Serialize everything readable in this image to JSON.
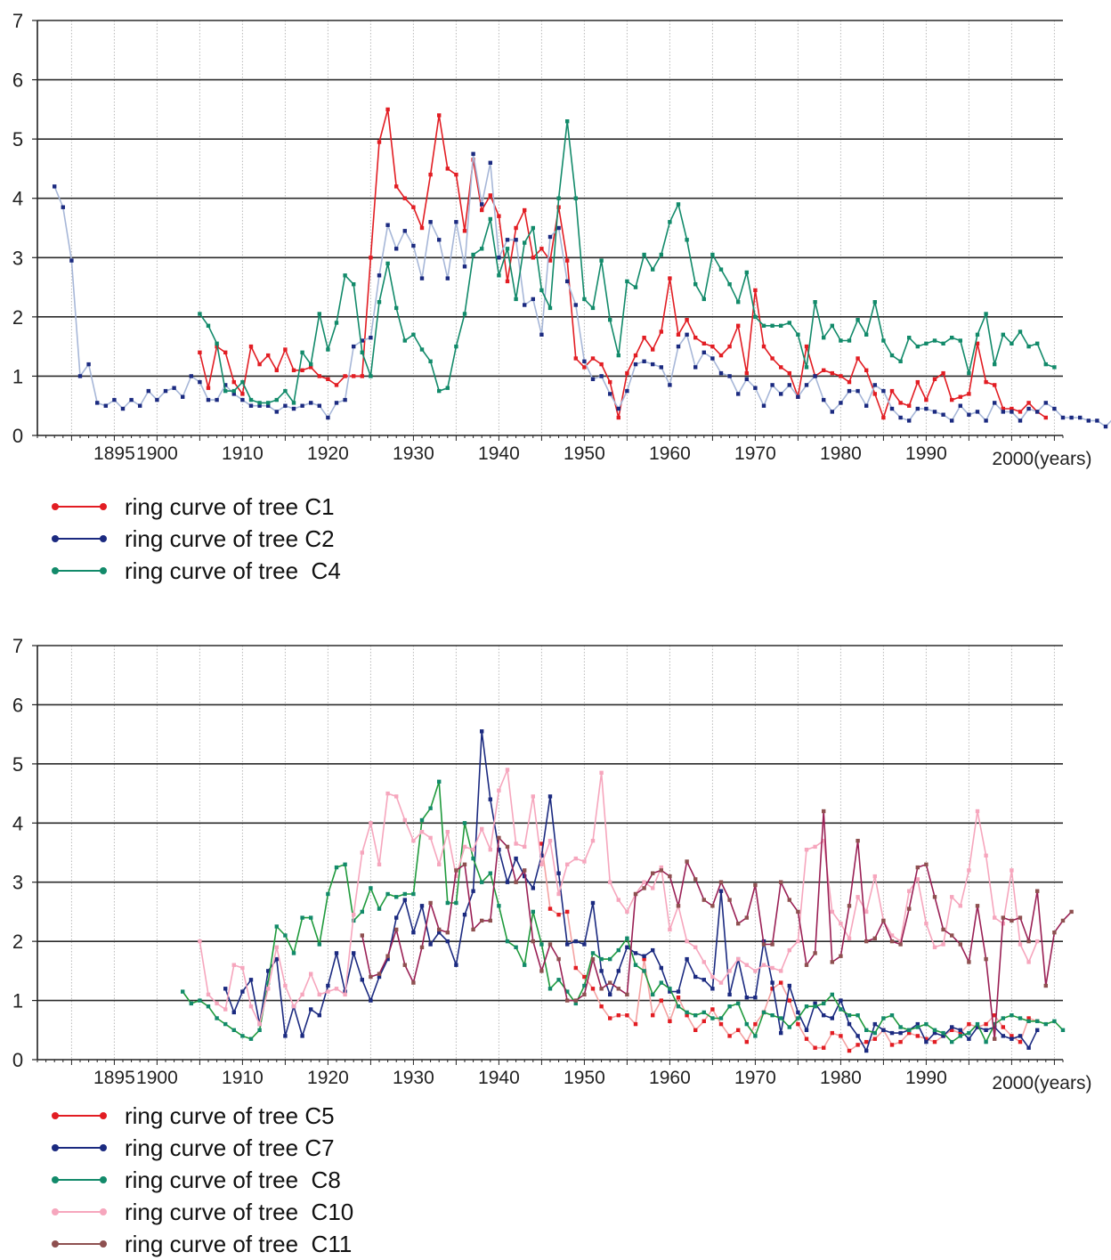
{
  "charts": [
    {
      "legend": [
        {
          "label": "ring curve of tree C1",
          "color": "#e21d23"
        },
        {
          "label": "ring curve of tree C2",
          "color": "#1b2a80"
        },
        {
          "label": "ring curve of tree  C4",
          "color": "#128a6a"
        }
      ]
    },
    {
      "legend": [
        {
          "label": "ring curve of tree C5",
          "color": "#e21d23"
        },
        {
          "label": "ring curve of tree C7",
          "color": "#1b2a80"
        },
        {
          "label": "ring curve of tree  C8",
          "color": "#128a6a"
        },
        {
          "label": "ring curve of tree  C10",
          "color": "#f6a6bd"
        },
        {
          "label": "ring curve of tree  C11",
          "color": "#8e5050"
        }
      ]
    }
  ],
  "chart_data": [
    {
      "type": "line",
      "title": "",
      "xlabel": "",
      "ylabel": "",
      "x_tick_labels": [
        "1895",
        "1900",
        "1910",
        "1920",
        "1930",
        "1940",
        "1950",
        "1960",
        "1970",
        "1980",
        "1990",
        "2000(years)"
      ],
      "x_ticks": [
        1895,
        1900,
        1910,
        1920,
        1930,
        1940,
        1950,
        1960,
        1970,
        1980,
        1990,
        2000
      ],
      "y_ticks": [
        0,
        1,
        2,
        3,
        4,
        5,
        6,
        7
      ],
      "xlim": [
        1886,
        2006
      ],
      "ylim": [
        0,
        7
      ],
      "grid": true,
      "legend_position": "bottom-left",
      "series": [
        {
          "name": "ring curve of tree C1",
          "color": "#e21d23",
          "line_color": "#e21d23",
          "x_start": 1905,
          "values": [
            1.4,
            0.8,
            1.5,
            1.4,
            0.9,
            0.7,
            1.5,
            1.2,
            1.35,
            1.1,
            1.45,
            1.1,
            1.1,
            1.15,
            1.0,
            0.95,
            0.85,
            1.0,
            1.0,
            1.0,
            3.0,
            4.95,
            5.5,
            4.2,
            4.0,
            3.85,
            3.5,
            4.4,
            5.4,
            4.5,
            4.4,
            3.45,
            4.65,
            3.8,
            4.05,
            3.7,
            2.6,
            3.5,
            3.8,
            3.0,
            3.15,
            2.95,
            3.85,
            2.95,
            1.3,
            1.15,
            1.3,
            1.2,
            0.9,
            0.3,
            1.05,
            1.35,
            1.65,
            1.45,
            1.75,
            2.65,
            1.7,
            1.95,
            1.65,
            1.55,
            1.5,
            1.35,
            1.5,
            1.85,
            1.05,
            2.45,
            1.5,
            1.3,
            1.15,
            1.05,
            0.65,
            1.5,
            1.0,
            1.1,
            1.05,
            1.0,
            0.9,
            1.3,
            1.1,
            0.7,
            0.3,
            0.75,
            0.55,
            0.5,
            0.9,
            0.6,
            0.95,
            1.05,
            0.6,
            0.65,
            0.7,
            1.55,
            0.9,
            0.85,
            0.45,
            0.45,
            0.4,
            0.55,
            0.4,
            0.3
          ]
        },
        {
          "name": "ring curve of tree C2",
          "color": "#1b2a80",
          "line_color": "#a7b7d8",
          "x_start": 1888,
          "values": [
            4.2,
            3.85,
            2.95,
            1.0,
            1.2,
            0.55,
            0.5,
            0.6,
            0.45,
            0.6,
            0.5,
            0.75,
            0.6,
            0.75,
            0.8,
            0.65,
            1.0,
            0.9,
            0.6,
            0.6,
            0.85,
            0.7,
            0.6,
            0.5,
            0.5,
            0.5,
            0.4,
            0.5,
            0.45,
            0.5,
            0.55,
            0.5,
            0.3,
            0.55,
            0.6,
            1.5,
            1.6,
            1.65,
            2.7,
            3.55,
            3.15,
            3.45,
            3.2,
            2.65,
            3.6,
            3.3,
            2.65,
            3.6,
            2.85,
            4.75,
            3.9,
            4.6,
            3.0,
            3.3,
            3.3,
            2.2,
            2.3,
            1.7,
            3.35,
            3.5,
            2.6,
            2.2,
            1.25,
            0.95,
            1.0,
            0.7,
            0.45,
            0.75,
            1.2,
            1.25,
            1.2,
            1.15,
            0.85,
            1.5,
            1.7,
            1.15,
            1.4,
            1.3,
            1.05,
            1.0,
            0.7,
            0.95,
            0.8,
            0.5,
            0.85,
            0.7,
            0.85,
            0.65,
            0.85,
            1.0,
            0.6,
            0.4,
            0.55,
            0.75,
            0.75,
            0.5,
            0.85,
            0.75,
            0.45,
            0.3,
            0.25,
            0.45,
            0.45,
            0.4,
            0.35,
            0.25,
            0.5,
            0.35,
            0.4,
            0.25,
            0.55,
            0.4,
            0.4,
            0.25,
            0.45,
            0.4,
            0.55,
            0.45,
            0.3,
            0.3,
            0.3,
            0.25,
            0.25,
            0.15,
            0.3
          ]
        },
        {
          "name": "ring curve of tree  C4",
          "color": "#128a6a",
          "line_color": "#128a6a",
          "x_start": 1905,
          "values": [
            2.05,
            1.85,
            1.55,
            0.75,
            0.75,
            0.9,
            0.6,
            0.55,
            0.55,
            0.6,
            0.75,
            0.55,
            1.4,
            1.2,
            2.05,
            1.45,
            1.9,
            2.7,
            2.55,
            1.4,
            1.0,
            2.25,
            2.9,
            2.15,
            1.6,
            1.7,
            1.45,
            1.25,
            0.75,
            0.8,
            1.5,
            2.05,
            3.05,
            3.15,
            3.65,
            2.7,
            3.15,
            2.3,
            3.25,
            3.5,
            2.45,
            2.15,
            4.0,
            5.3,
            4.0,
            2.3,
            2.15,
            2.95,
            1.95,
            1.35,
            2.6,
            2.5,
            3.05,
            2.8,
            3.05,
            3.6,
            3.9,
            3.3,
            2.55,
            2.3,
            3.05,
            2.8,
            2.55,
            2.25,
            2.75,
            2.0,
            1.85,
            1.85,
            1.85,
            1.9,
            1.7,
            1.15,
            2.25,
            1.65,
            1.85,
            1.6,
            1.6,
            1.95,
            1.7,
            2.25,
            1.6,
            1.35,
            1.25,
            1.65,
            1.5,
            1.55,
            1.6,
            1.55,
            1.65,
            1.6,
            1.05,
            1.7,
            2.05,
            1.2,
            1.7,
            1.55,
            1.75,
            1.5,
            1.55,
            1.2,
            1.15
          ]
        }
      ]
    },
    {
      "type": "line",
      "title": "",
      "xlabel": "",
      "ylabel": "",
      "x_tick_labels": [
        "1895",
        "1900",
        "1910",
        "1920",
        "1930",
        "1940",
        "1950",
        "1960",
        "1970",
        "1980",
        "1990",
        "2000(years)"
      ],
      "x_ticks": [
        1895,
        1900,
        1910,
        1920,
        1930,
        1940,
        1950,
        1960,
        1970,
        1980,
        1990,
        2000
      ],
      "y_ticks": [
        0,
        1,
        2,
        3,
        4,
        5,
        6,
        7
      ],
      "xlim": [
        1886,
        2006
      ],
      "ylim": [
        0,
        7
      ],
      "grid": true,
      "legend_position": "bottom-left",
      "series": [
        {
          "name": "ring curve of tree C5",
          "color": "#e21d23",
          "line_color": "#f4a2a2",
          "x_start": 1945,
          "values": [
            3.65,
            2.55,
            2.45,
            2.5,
            1.55,
            1.4,
            1.2,
            0.9,
            0.7,
            0.75,
            0.75,
            0.6,
            1.7,
            0.75,
            1.0,
            0.65,
            1.05,
            0.75,
            0.5,
            0.65,
            0.85,
            0.6,
            0.4,
            0.5,
            0.3,
            0.6,
            0.8,
            1.2,
            1.3,
            1.0,
            0.6,
            0.35,
            0.2,
            0.2,
            0.45,
            0.4,
            0.15,
            0.25,
            0.3,
            0.35,
            0.5,
            0.25,
            0.3,
            0.45,
            0.4,
            0.35,
            0.3,
            0.4,
            0.5,
            0.45,
            0.6,
            0.55,
            0.6,
            0.75,
            0.55,
            0.4,
            0.3,
            0.7,
            0.65
          ]
        },
        {
          "name": "ring curve of tree C7",
          "color": "#1b2a80",
          "line_color": "#1b2a80",
          "x_start": 1908,
          "values": [
            1.2,
            0.8,
            1.15,
            1.35,
            0.6,
            1.5,
            1.7,
            0.4,
            0.9,
            0.4,
            0.85,
            0.75,
            1.25,
            1.8,
            1.15,
            1.8,
            1.35,
            1.0,
            1.4,
            1.7,
            2.4,
            2.7,
            2.15,
            2.6,
            1.95,
            2.15,
            2.0,
            1.6,
            2.45,
            2.85,
            5.55,
            4.4,
            3.55,
            3.0,
            3.4,
            3.1,
            2.9,
            3.45,
            4.45,
            3.15,
            1.95,
            2.0,
            1.95,
            2.65,
            1.5,
            1.1,
            1.5,
            1.9,
            1.8,
            1.75,
            1.85,
            1.55,
            1.15,
            1.15,
            1.7,
            1.4,
            1.35,
            1.2,
            2.85,
            1.1,
            1.7,
            1.05,
            1.05,
            2.0,
            1.3,
            0.45,
            1.25,
            0.8,
            0.5,
            0.95,
            0.75,
            0.7,
            1.0,
            0.6,
            0.4,
            0.15,
            0.6,
            0.5,
            0.45,
            0.45,
            0.5,
            0.6,
            0.3,
            0.45,
            0.4,
            0.55,
            0.5,
            0.35,
            0.55,
            0.5,
            0.55,
            0.4,
            0.35,
            0.4,
            0.2,
            0.5
          ]
        },
        {
          "name": "ring curve of tree  C8",
          "color": "#128a6a",
          "line_color": "#1f9a3c",
          "x_start": 1903,
          "values": [
            1.15,
            0.95,
            1.0,
            0.9,
            0.7,
            0.6,
            0.5,
            0.4,
            0.35,
            0.5,
            1.3,
            2.25,
            2.1,
            1.8,
            2.4,
            2.4,
            1.95,
            2.8,
            3.25,
            3.3,
            2.35,
            2.5,
            2.9,
            2.55,
            2.8,
            2.75,
            2.8,
            2.8,
            4.05,
            4.25,
            4.7,
            2.65,
            2.65,
            4.0,
            3.4,
            3.0,
            3.15,
            2.6,
            2.0,
            1.9,
            1.6,
            2.5,
            1.95,
            1.2,
            1.35,
            1.15,
            0.95,
            1.25,
            1.8,
            1.7,
            1.7,
            1.85,
            2.05,
            1.6,
            1.5,
            1.1,
            1.3,
            1.2,
            0.9,
            0.8,
            0.75,
            0.8,
            0.7,
            0.7,
            0.9,
            0.95,
            0.6,
            0.4,
            0.8,
            0.75,
            0.7,
            0.55,
            0.7,
            0.9,
            0.9,
            0.95,
            1.1,
            0.85,
            0.75,
            0.75,
            0.5,
            0.45,
            0.7,
            0.75,
            0.55,
            0.5,
            0.55,
            0.6,
            0.5,
            0.45,
            0.3,
            0.4,
            0.45,
            0.6,
            0.3,
            0.6,
            0.7,
            0.75,
            0.7,
            0.65,
            0.65,
            0.6,
            0.65,
            0.5
          ]
        },
        {
          "name": "ring curve of tree  C10",
          "color": "#f6a6bd",
          "line_color": "#f6a6bd",
          "x_start": 1905,
          "values": [
            2.0,
            1.1,
            0.95,
            0.85,
            1.6,
            1.55,
            0.9,
            0.6,
            1.2,
            1.9,
            1.25,
            0.9,
            1.1,
            1.45,
            1.1,
            1.15,
            1.2,
            1.1,
            2.45,
            3.5,
            4.0,
            3.3,
            4.5,
            4.45,
            4.05,
            3.7,
            3.85,
            3.75,
            3.3,
            3.85,
            3.1,
            3.6,
            3.55,
            3.9,
            3.55,
            4.55,
            4.9,
            3.65,
            3.6,
            4.45,
            3.3,
            3.7,
            2.8,
            3.3,
            3.4,
            3.35,
            3.7,
            4.85,
            3.0,
            2.7,
            2.5,
            2.8,
            3.0,
            2.9,
            3.25,
            2.2,
            2.6,
            2.0,
            1.9,
            1.65,
            1.4,
            1.3,
            1.5,
            1.7,
            1.6,
            1.5,
            1.6,
            1.55,
            1.5,
            1.85,
            2.0,
            3.55,
            3.6,
            3.7,
            2.5,
            2.3,
            2.05,
            2.75,
            2.5,
            3.1,
            2.35,
            2.1,
            2.0,
            2.85,
            3.05,
            2.3,
            1.9,
            1.95,
            2.75,
            2.6,
            3.2,
            4.2,
            3.45,
            2.4,
            2.3,
            3.2,
            1.95,
            1.65,
            2.0
          ]
        },
        {
          "name": "ring curve of tree  C11",
          "color": "#8e5050",
          "line_color": "#9a2055",
          "x_start": 1924,
          "values": [
            2.1,
            1.4,
            1.45,
            1.75,
            2.2,
            1.6,
            1.3,
            1.9,
            2.65,
            2.2,
            2.15,
            3.2,
            3.3,
            2.2,
            2.35,
            2.35,
            3.75,
            3.6,
            3.0,
            3.2,
            2.0,
            1.5,
            1.95,
            1.7,
            1.0,
            1.0,
            1.1,
            1.7,
            1.2,
            1.3,
            1.2,
            1.1,
            2.8,
            2.9,
            3.15,
            3.2,
            3.1,
            2.6,
            3.35,
            3.05,
            2.7,
            2.6,
            3.0,
            2.7,
            2.3,
            2.4,
            2.95,
            1.95,
            1.95,
            3.0,
            2.7,
            2.5,
            1.6,
            1.8,
            4.2,
            1.65,
            1.75,
            2.6,
            3.7,
            2.0,
            2.05,
            2.35,
            2.0,
            1.95,
            2.55,
            3.25,
            3.3,
            2.75,
            2.2,
            2.1,
            1.95,
            1.65,
            2.6,
            1.7,
            0.35,
            2.4,
            2.35,
            2.4,
            2.0,
            2.85,
            1.25,
            2.15,
            2.35,
            2.5
          ]
        }
      ]
    }
  ]
}
